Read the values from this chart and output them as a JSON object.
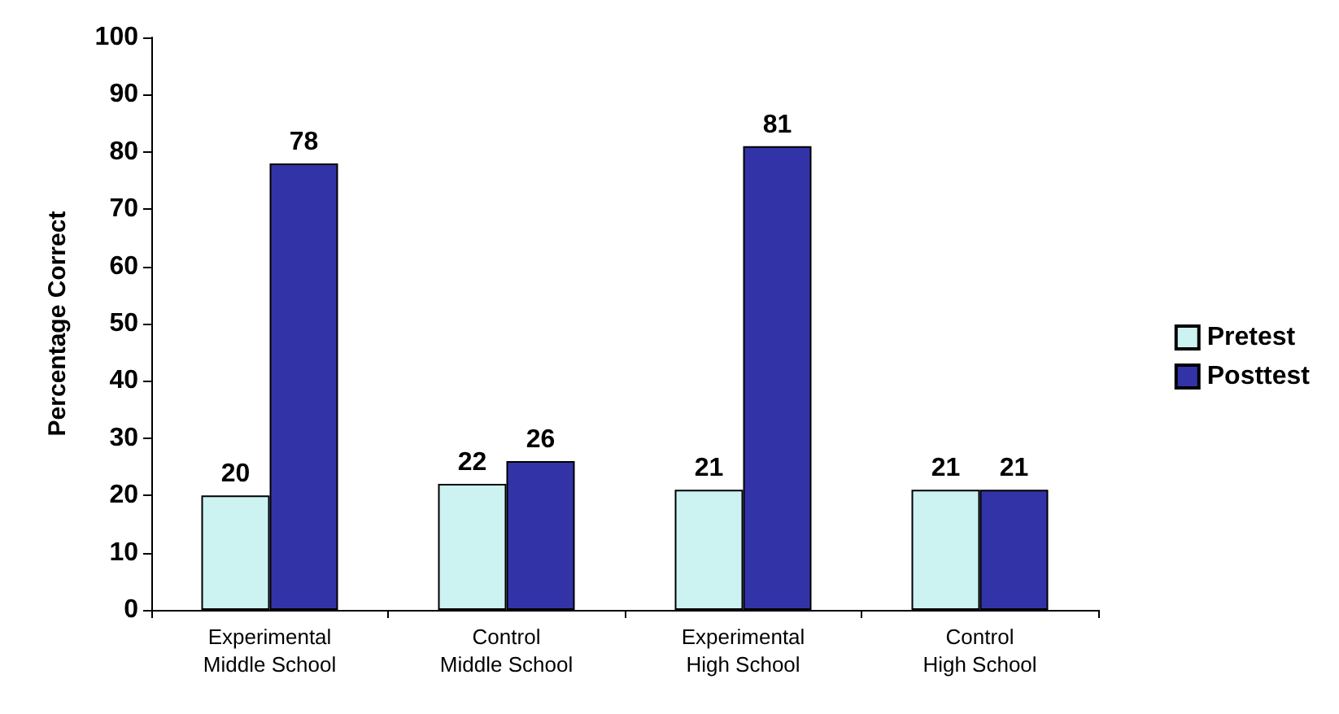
{
  "chart_data": {
    "type": "bar",
    "ylabel": "Percentage Correct",
    "categories": [
      "Experimental Middle School",
      "Control Middle School",
      "Experimental High School",
      "Control High School"
    ],
    "series": [
      {
        "name": "Pretest",
        "color": "#ccf2f2",
        "values": [
          20,
          22,
          21,
          21
        ]
      },
      {
        "name": "Posttest",
        "color": "#3333a8",
        "values": [
          78,
          26,
          81,
          21
        ]
      }
    ],
    "ylim": [
      0,
      100
    ],
    "yticks": [
      0,
      10,
      20,
      30,
      40,
      50,
      60,
      70,
      80,
      90,
      100
    ],
    "grid": false,
    "legend": "right",
    "data_labels": true
  }
}
